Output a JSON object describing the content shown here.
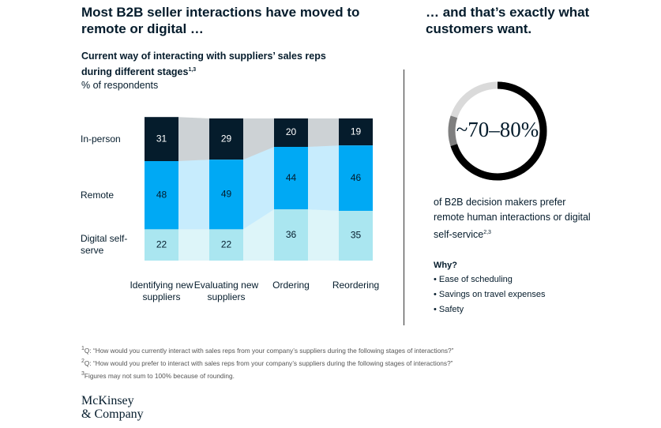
{
  "headline_left": "Most B2B seller interactions have moved to remote or digital …",
  "headline_right": "… and that’s exactly what customers want.",
  "chart_data": {
    "type": "bar",
    "stacked": true,
    "title": "Current way of interacting with suppliers’ sales reps during different stages",
    "title_note": "1,3",
    "subtitle": "% of respondents",
    "categories": [
      "Identifying new suppliers",
      "Evaluating new suppliers",
      "Ordering",
      "Reordering"
    ],
    "series": [
      {
        "name": "In-person",
        "color": "#051c2c",
        "values": [
          31,
          29,
          20,
          19
        ]
      },
      {
        "name": "Remote",
        "color": "#00a9f4",
        "values": [
          48,
          49,
          44,
          46
        ]
      },
      {
        "name": "Digital self-serve",
        "color": "#aae6f0",
        "values": [
          22,
          22,
          36,
          35
        ]
      }
    ],
    "ylim": [
      0,
      100
    ]
  },
  "callout": {
    "value": "~70–80%",
    "text": "of B2B decision makers prefer remote human interactions or digital self-service",
    "note": "2,3",
    "why": "Why?",
    "reasons": [
      "Ease of scheduling",
      "Savings on travel expenses",
      "Safety"
    ]
  },
  "footnotes": [
    {
      "mark": "1",
      "text": "Q: “How would you currently interact with sales reps from your company’s suppliers during the following stages of interactions?”"
    },
    {
      "mark": "2",
      "text": "Q: “How would you prefer to interact with sales reps from your company’s suppliers during the following stages of interactions?”"
    },
    {
      "mark": "3",
      "text": "Figures may not sum to 100% because of rounding."
    }
  ],
  "logo": [
    "McKinsey",
    "& Company"
  ]
}
